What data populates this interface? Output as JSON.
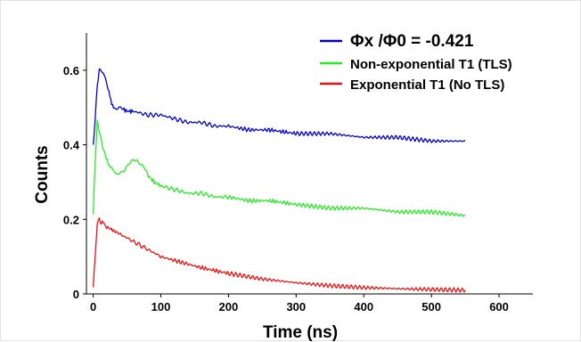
{
  "chart_data": {
    "type": "line",
    "title": "",
    "xlabel": "Time (ns)",
    "ylabel": "Counts",
    "xlim": [
      -10,
      650
    ],
    "ylim": [
      0,
      0.7
    ],
    "xticks": [
      0,
      100,
      200,
      300,
      400,
      500,
      600
    ],
    "xtick_labels": [
      "0",
      "100",
      "200",
      "300",
      "400",
      "500",
      "600"
    ],
    "yticks": [
      0,
      0.2,
      0.4,
      0.6
    ],
    "ytick_labels": [
      "0",
      "0.2",
      "0.4",
      "0.6"
    ],
    "grid": false,
    "legend_position": "top-right",
    "series": [
      {
        "name": "Φx /Φ0 = -0.421",
        "color": "#0000cc",
        "x": [
          0,
          3,
          6,
          9,
          12,
          15,
          18,
          22,
          26,
          30,
          35,
          40,
          50,
          60,
          80,
          100,
          120,
          140,
          160,
          180,
          200,
          230,
          260,
          300,
          350,
          400,
          450,
          500,
          550
        ],
        "y": [
          0.4,
          0.47,
          0.56,
          0.6,
          0.6,
          0.59,
          0.58,
          0.55,
          0.52,
          0.5,
          0.5,
          0.5,
          0.49,
          0.49,
          0.48,
          0.48,
          0.47,
          0.46,
          0.46,
          0.45,
          0.45,
          0.44,
          0.44,
          0.43,
          0.43,
          0.42,
          0.42,
          0.41,
          0.41
        ]
      },
      {
        "name": "Non-exponential T1 (TLS)",
        "color": "#22ee22",
        "x": [
          0,
          3,
          6,
          9,
          12,
          15,
          18,
          22,
          26,
          30,
          35,
          40,
          45,
          50,
          55,
          60,
          65,
          70,
          75,
          80,
          90,
          100,
          120,
          140,
          160,
          180,
          200,
          230,
          260,
          300,
          350,
          400,
          450,
          500,
          550
        ],
        "y": [
          0.21,
          0.36,
          0.46,
          0.44,
          0.41,
          0.39,
          0.37,
          0.35,
          0.34,
          0.33,
          0.32,
          0.33,
          0.33,
          0.34,
          0.35,
          0.36,
          0.36,
          0.35,
          0.34,
          0.32,
          0.3,
          0.29,
          0.28,
          0.27,
          0.27,
          0.26,
          0.26,
          0.25,
          0.25,
          0.24,
          0.23,
          0.23,
          0.22,
          0.22,
          0.21
        ]
      },
      {
        "name": "Exponential T1 (No TLS)",
        "color": "#ee1111",
        "x": [
          0,
          3,
          6,
          9,
          12,
          15,
          20,
          30,
          40,
          60,
          80,
          100,
          130,
          160,
          200,
          250,
          300,
          350,
          400,
          450,
          500,
          550
        ],
        "y": [
          0.02,
          0.1,
          0.19,
          0.2,
          0.19,
          0.19,
          0.18,
          0.17,
          0.16,
          0.14,
          0.12,
          0.1,
          0.085,
          0.07,
          0.055,
          0.04,
          0.03,
          0.022,
          0.017,
          0.014,
          0.012,
          0.01
        ]
      }
    ]
  }
}
